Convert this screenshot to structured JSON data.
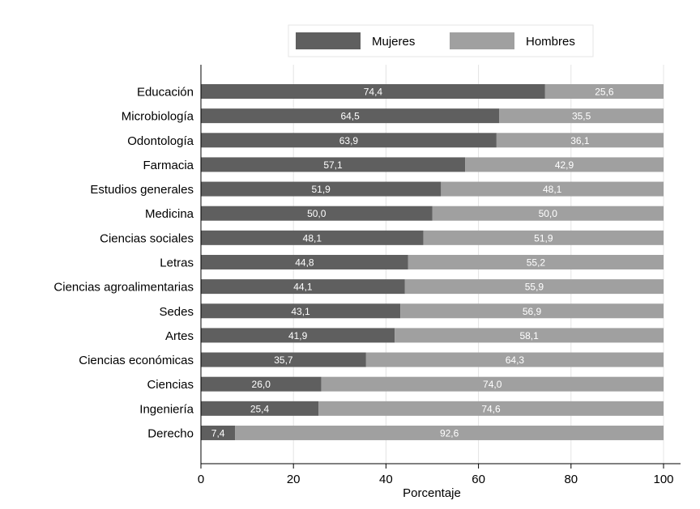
{
  "chart_data": {
    "type": "bar",
    "orientation": "horizontal",
    "stacked": true,
    "title": "",
    "xlabel": "Porcentaje",
    "ylabel": "",
    "xlim": [
      0,
      100
    ],
    "xticks": [
      0,
      20,
      40,
      60,
      80,
      100
    ],
    "grid": true,
    "legend_position": "top",
    "categories": [
      "Educación",
      "Microbiología",
      "Odontología",
      "Farmacia",
      "Estudios generales",
      "Medicina",
      "Ciencias sociales",
      "Letras",
      "Ciencias agroalimentarias",
      "Sedes",
      "Artes",
      "Ciencias económicas",
      "Ciencias",
      "Ingeniería",
      "Derecho"
    ],
    "series": [
      {
        "name": "Mujeres",
        "color": "#5f5f5f",
        "values": [
          74.4,
          64.5,
          63.9,
          57.1,
          51.9,
          50.0,
          48.1,
          44.8,
          44.1,
          43.1,
          41.9,
          35.7,
          26.0,
          25.4,
          7.4
        ],
        "labels": [
          "74,4",
          "64,5",
          "63,9",
          "57,1",
          "51,9",
          "50,0",
          "48,1",
          "44,8",
          "44,1",
          "43,1",
          "41,9",
          "35,7",
          "26,0",
          "25,4",
          "7,4"
        ]
      },
      {
        "name": "Hombres",
        "color": "#a0a0a0",
        "values": [
          25.6,
          35.5,
          36.1,
          42.9,
          48.1,
          50.0,
          51.9,
          55.2,
          55.9,
          56.9,
          58.1,
          64.3,
          74.0,
          74.6,
          92.6
        ],
        "labels": [
          "25,6",
          "35,5",
          "36,1",
          "42,9",
          "48,1",
          "50,0",
          "51,9",
          "55,2",
          "55,9",
          "56,9",
          "58,1",
          "64,3",
          "74,0",
          "74,6",
          "92,6"
        ]
      }
    ]
  }
}
